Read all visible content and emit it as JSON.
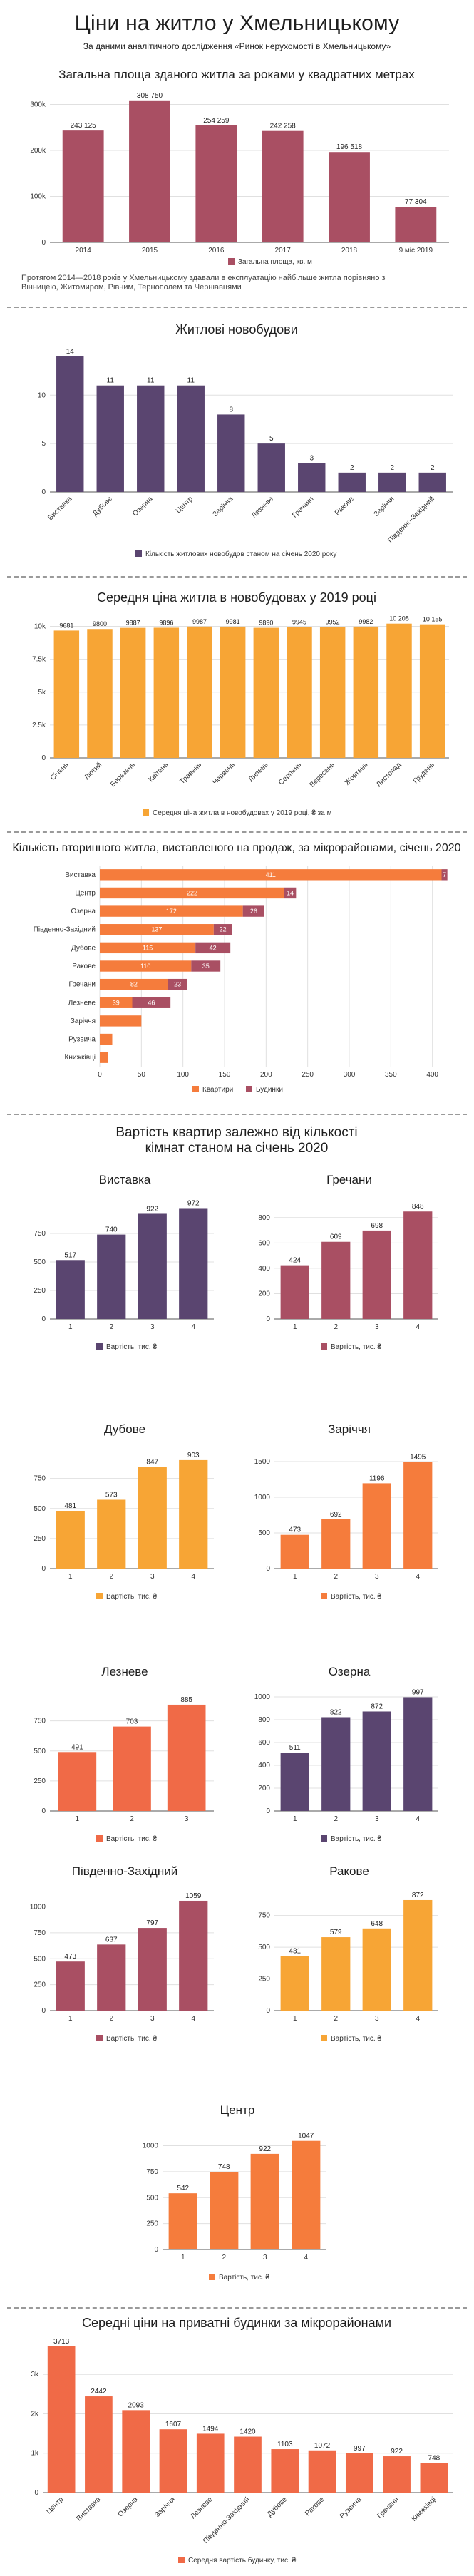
{
  "page": {
    "title": "Ціни на житло у Хмельницькому",
    "subtitle": "За даними аналітичного дослідження «Ринок нерухомості в Хмельницькому»"
  },
  "notes": {
    "area_note": "Протягом 2014—2018 років у Хмельницькому здавали в експлуатацію найбільше житла порівняно з Вінницею, Житомиром, Рівним, Тернополем та Черніавцями"
  },
  "colors": {
    "maroon": "#a94f63",
    "purple": "#5a4570",
    "orange_light": "#f7a535",
    "orange": "#f57c3c",
    "coral": "#f06a47",
    "grid": "#e0e0e0"
  },
  "chart_data": [
    {
      "id": "area",
      "type": "bar",
      "title": "Загальна площа зданого житла за роками у квадратних метрах",
      "categories": [
        "2014",
        "2015",
        "2016",
        "2017",
        "2018",
        "9 міс 2019"
      ],
      "series": [
        {
          "name": "Загальна площа, кв. м",
          "values": [
            243125,
            308750,
            254259,
            242258,
            196518,
            77304
          ]
        }
      ],
      "labels": [
        "243 125",
        "308 750",
        "254 259",
        "242 258",
        "196 518",
        "77 304"
      ],
      "ylim": [
        0,
        310000
      ],
      "yticks": [
        0,
        100000,
        200000,
        300000
      ],
      "ytick_labels": [
        "0",
        "100k",
        "200k",
        "300k"
      ],
      "legend": "bottom",
      "color": "#a94f63"
    },
    {
      "id": "newbuild",
      "type": "bar",
      "title": "Житлові новобудови",
      "categories": [
        "Виставка",
        "Дубове",
        "Озерна",
        "Центр",
        "Зарічча",
        "Лезневе",
        "Гречани",
        "Ракове",
        "Заріччя",
        "Південно-Західний"
      ],
      "series": [
        {
          "name": "Кількість житлових новобудов станом на січень 2020 року",
          "values": [
            14,
            11,
            11,
            11,
            8,
            5,
            3,
            2,
            2,
            2
          ]
        }
      ],
      "ylim": [
        0,
        14
      ],
      "yticks": [
        0,
        5,
        10
      ],
      "ytick_labels": [
        "0",
        "5",
        "10"
      ],
      "legend": "bottom",
      "color": "#5a4570"
    },
    {
      "id": "avgprice",
      "type": "bar",
      "title": "Середня ціна житла в новобудовах у 2019 році",
      "categories": [
        "Січень",
        "Лютий",
        "Березень",
        "Квітень",
        "Травень",
        "Червень",
        "Липень",
        "Серпень",
        "Вересень",
        "Жовтень",
        "Листопад",
        "Грудень"
      ],
      "series": [
        {
          "name": "Середня ціна житла в новобудовах у 2019 році, ₴ за м",
          "values": [
            9681,
            9800,
            9887,
            9896,
            9987,
            9981,
            9890,
            9945,
            9952,
            9982,
            10208,
            10155
          ]
        }
      ],
      "labels": [
        "9681",
        "9800",
        "9887",
        "9896",
        "9987",
        "9981",
        "9890",
        "9945",
        "9952",
        "9982",
        "10 208",
        "10 155"
      ],
      "ylim": [
        0,
        10300
      ],
      "yticks": [
        0,
        2500,
        5000,
        7500,
        10000
      ],
      "ytick_labels": [
        "0",
        "2.5k",
        "5k",
        "7.5k",
        "10k"
      ],
      "legend": "bottom",
      "color": "#f7a535"
    },
    {
      "id": "secondary",
      "type": "bar",
      "orientation": "horizontal-stacked",
      "title": "Кількість вторинного житла, виставленого на продаж, за мікрорайонами, січень 2020",
      "categories": [
        "Виставка",
        "Центр",
        "Озерна",
        "Південно-Західний",
        "Дубове",
        "Ракове",
        "Гречани",
        "Лезневе",
        "Заріччя",
        "Рузвича",
        "Книжківці"
      ],
      "series": [
        {
          "name": "Квартири",
          "values": [
            411,
            222,
            172,
            137,
            115,
            110,
            82,
            39,
            50,
            15,
            10
          ]
        },
        {
          "name": "Будинки",
          "values": [
            7,
            14,
            26,
            22,
            42,
            35,
            23,
            46,
            0,
            0,
            0
          ]
        }
      ],
      "labels_a": [
        "411",
        "222",
        "172",
        "137",
        "115",
        "110",
        "82",
        "39",
        "",
        "",
        ""
      ],
      "labels_b": [
        "7",
        "14",
        "26",
        "22",
        "42",
        "35",
        "23",
        "46",
        "",
        "",
        ""
      ],
      "xlim": [
        0,
        420
      ],
      "xticks": [
        0,
        50,
        100,
        150,
        200,
        250,
        300,
        350,
        400
      ],
      "legend": "bottom",
      "colors": [
        "#f57c3c",
        "#a94f63"
      ]
    }
  ],
  "rooms_section": {
    "title_line1": "Вартість квартир залежно від кількості",
    "title_line2": "кімнат станом на січень 2020",
    "panels": [
      {
        "title": "Виставка",
        "categories": [
          "1",
          "2",
          "3",
          "4"
        ],
        "values": [
          517,
          740,
          922,
          972
        ],
        "labels": [
          "517",
          "740",
          "922",
          "972"
        ],
        "yticks": [
          0,
          250,
          500,
          750
        ],
        "ymax": 1000,
        "color": "#5a4570",
        "legend": "Вартість, тис. ₴"
      },
      {
        "title": "Гречани",
        "categories": [
          "1",
          "2",
          "3",
          "4"
        ],
        "values": [
          424,
          609,
          698,
          848
        ],
        "labels": [
          "424",
          "609",
          "698",
          "848"
        ],
        "yticks": [
          0,
          200,
          400,
          600,
          800
        ],
        "ymax": 900,
        "color": "#a94f63",
        "legend": "Вартість, тис. ₴"
      },
      {
        "title": "Дубове",
        "categories": [
          "1",
          "2",
          "3",
          "4"
        ],
        "values": [
          481,
          573,
          847,
          903
        ],
        "labels": [
          "481",
          "573",
          "847",
          "903"
        ],
        "yticks": [
          0,
          250,
          500,
          750
        ],
        "ymax": 950,
        "color": "#f7a535",
        "legend": "Вартість, тис. ₴"
      },
      {
        "title": "Заріччя",
        "categories": [
          "1",
          "2",
          "3",
          "4"
        ],
        "values": [
          473,
          692,
          1196,
          1495
        ],
        "labels": [
          "473",
          "692",
          "1196",
          "1495"
        ],
        "yticks": [
          0,
          500,
          1000,
          1500
        ],
        "ymax": 1600,
        "color": "#f57c3c",
        "legend": "Вартість, тис. ₴"
      },
      {
        "title": "Лезневе",
        "categories": [
          "1",
          "2",
          "3"
        ],
        "values": [
          491,
          703,
          885
        ],
        "labels": [
          "491",
          "703",
          "885"
        ],
        "yticks": [
          0,
          250,
          500,
          750
        ],
        "ymax": 950,
        "color": "#f06a47",
        "legend": "Вартість, тис. ₴"
      },
      {
        "title": "Озерна",
        "categories": [
          "1",
          "2",
          "3",
          "4"
        ],
        "values": [
          511,
          822,
          872,
          997
        ],
        "labels": [
          "511",
          "822",
          "872",
          "997"
        ],
        "yticks": [
          0,
          200,
          400,
          600,
          800,
          1000
        ],
        "ymax": 1000,
        "color": "#5a4570",
        "legend": "Вартість, тис. ₴"
      },
      {
        "title": "Південно-Західний",
        "categories": [
          "1",
          "2",
          "3",
          "4"
        ],
        "values": [
          473,
          637,
          797,
          1059
        ],
        "labels": [
          "473",
          "637",
          "797",
          "1059"
        ],
        "yticks": [
          0,
          250,
          500,
          750,
          1000
        ],
        "ymax": 1100,
        "color": "#a94f63",
        "legend": "Вартість, тис. ₴"
      },
      {
        "title": "Ракове",
        "categories": [
          "1",
          "2",
          "3",
          "4"
        ],
        "values": [
          431,
          579,
          648,
          872
        ],
        "labels": [
          "431",
          "579",
          "648",
          "872"
        ],
        "yticks": [
          0,
          250,
          500,
          750
        ],
        "ymax": 900,
        "color": "#f7a535",
        "legend": "Вартість, тис. ₴"
      },
      {
        "title": "Центр",
        "categories": [
          "1",
          "2",
          "3",
          "4"
        ],
        "values": [
          542,
          748,
          922,
          1047
        ],
        "labels": [
          "542",
          "748",
          "922",
          "1047"
        ],
        "yticks": [
          0,
          250,
          500,
          750,
          1000
        ],
        "ymax": 1100,
        "color": "#f57c3c",
        "legend": "Вартість, тис. ₴"
      }
    ]
  },
  "houses": {
    "title": "Середні ціни на приватні будинки за мікрорайонами",
    "categories": [
      "Центр",
      "Виставка",
      "Озерна",
      "Заріччя",
      "Лезневе",
      "Південно-Західний",
      "Дубове",
      "Ракове",
      "Рузвича",
      "Гречани",
      "Книжківці"
    ],
    "values": [
      3713,
      2442,
      2093,
      1607,
      1494,
      1420,
      1103,
      1072,
      997,
      922,
      748
    ],
    "labels": [
      "3713",
      "2442",
      "2093",
      "1607",
      "1494",
      "1420",
      "1103",
      "1072",
      "997",
      "922",
      "748"
    ],
    "yticks": [
      0,
      1000,
      2000,
      3000
    ],
    "ytick_labels": [
      "0",
      "1k",
      "2k",
      "3k"
    ],
    "ymax": 3800,
    "legend": "Середня вартість будинку, тис. ₴",
    "color": "#f06a47"
  }
}
